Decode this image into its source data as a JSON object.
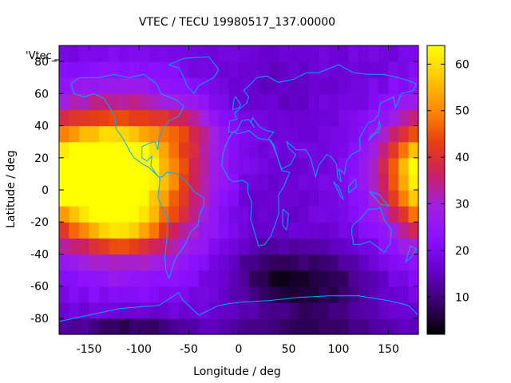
{
  "chart_data": {
    "type": "heatmap",
    "title": "VTEC / TECU 19980517_137.00000",
    "xlabel": "Longitude / deg",
    "ylabel": "Latitude / deg",
    "legend_label": "'Vtec_",
    "xlim": [
      -180,
      180
    ],
    "ylim": [
      -90,
      90
    ],
    "x_ticks": [
      -150,
      -100,
      -50,
      0,
      50,
      100,
      150
    ],
    "y_ticks": [
      -80,
      -60,
      -40,
      -20,
      0,
      20,
      40,
      60,
      80
    ],
    "colorbar": {
      "range": [
        2,
        64
      ],
      "ticks": [
        10,
        20,
        30,
        40,
        50,
        60
      ],
      "palette": [
        "#000000",
        "#3a006e",
        "#6600cc",
        "#8c10ff",
        "#a020e0",
        "#cc2060",
        "#e84010",
        "#ff8a00",
        "#ffc800",
        "#ffff00"
      ]
    },
    "grid_step_deg": 10,
    "features": [
      {
        "lon": -115,
        "lat": 7,
        "peak": 47,
        "sig_lon": 55,
        "sig_lat": 32
      },
      {
        "lon": -118,
        "lat": 18,
        "peak": 18,
        "sig_lon": 22,
        "sig_lat": 12
      },
      {
        "lon": -120,
        "lat": -22,
        "peak": 14,
        "sig_lon": 25,
        "sig_lat": 10
      },
      {
        "lon": 185,
        "lat": 10,
        "peak": 26,
        "sig_lon": 30,
        "sig_lat": 22
      },
      {
        "lon": -55,
        "lat": 38,
        "peak": 8,
        "sig_lon": 20,
        "sig_lat": 10
      },
      {
        "lon": 70,
        "lat": -60,
        "peak": -13,
        "sig_lon": 45,
        "sig_lat": 16
      },
      {
        "lon": 25,
        "lat": -50,
        "peak": -5,
        "sig_lon": 25,
        "sig_lat": 10
      },
      {
        "lon": 10,
        "lat": -5,
        "peak": -4,
        "sig_lon": 35,
        "sig_lat": 20
      },
      {
        "lon": -110,
        "lat": -85,
        "peak": -11,
        "sig_lon": 45,
        "sig_lat": 6
      },
      {
        "lon": 70,
        "lat": -85,
        "peak": -7,
        "sig_lon": 60,
        "sig_lat": 5
      },
      {
        "lon": 30,
        "lat": 65,
        "peak": -3,
        "sig_lon": 50,
        "sig_lat": 15
      }
    ],
    "background_value": 18,
    "coastlines_color": "#00aaff"
  }
}
